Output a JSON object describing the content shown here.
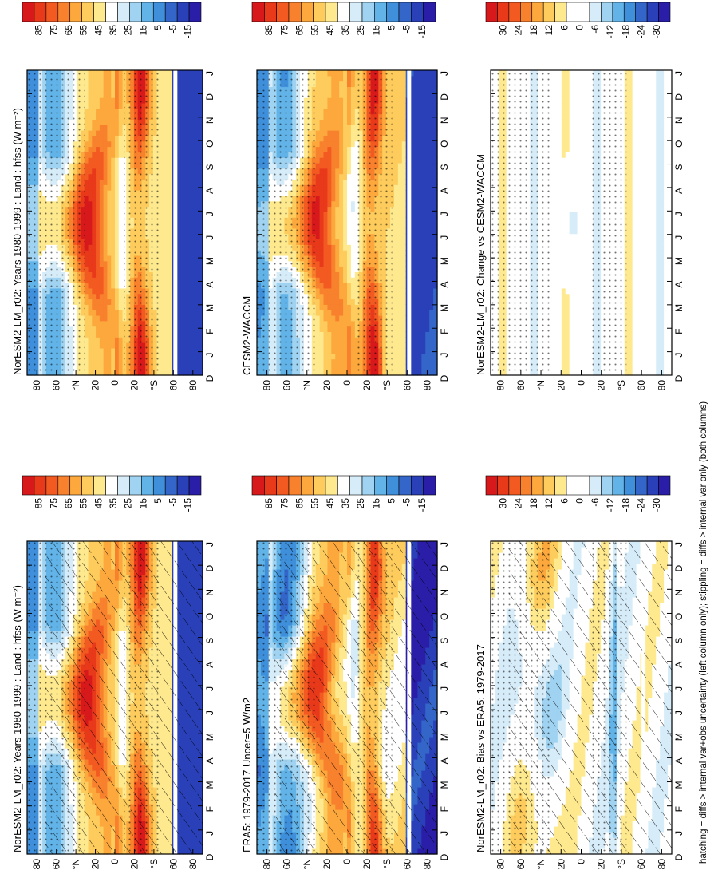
{
  "footnote": "hatching = diffs > internal var+obs uncertainty (left column only); stippling = diffs > internal var only (both columns)",
  "months": [
    "D",
    "J",
    "F",
    "M",
    "A",
    "M",
    "J",
    "J",
    "A",
    "S",
    "O",
    "N",
    "D",
    "J"
  ],
  "lat_ticks": [
    "80",
    "60",
    "°N",
    "20",
    "0",
    "20",
    "°S",
    "60",
    "80"
  ],
  "chart_data": [
    {
      "type": "heatmap",
      "title": "NorESM2-LM_r02: Years 1980-1999 : Land : hfss (W m⁻²)",
      "field": "clim",
      "hatching": true,
      "colorbar": {
        "labels": [
          "85",
          "75",
          "65",
          "55",
          "45",
          "35",
          "25",
          "15",
          "5",
          "-5",
          "-15"
        ],
        "colors": [
          "#d7191c",
          "#e8391b",
          "#f25a21",
          "#f8812d",
          "#fca83d",
          "#fdcc5c",
          "#fee98e",
          "#ffffff",
          "#d6ecf8",
          "#9fd3f1",
          "#62b3e8",
          "#3f8fdb",
          "#3466c9",
          "#2a40b8",
          "#2a1ea8"
        ]
      }
    },
    {
      "type": "heatmap",
      "title": "ERA5: 1979-2017 Uncer=5 W/m2",
      "field": "obs",
      "hatching": true,
      "colorbar": {
        "labels": [
          "85",
          "75",
          "65",
          "55",
          "45",
          "35",
          "25",
          "15",
          "5",
          "-5",
          "-15"
        ],
        "colors": [
          "#d7191c",
          "#e8391b",
          "#f25a21",
          "#f8812d",
          "#fca83d",
          "#fdcc5c",
          "#fee98e",
          "#ffffff",
          "#d6ecf8",
          "#9fd3f1",
          "#62b3e8",
          "#3f8fdb",
          "#3466c9",
          "#2a40b8",
          "#2a1ea8"
        ]
      }
    },
    {
      "type": "heatmap",
      "title": "NorESM2-LM_r02: Bias vs ERA5: 1979-2017",
      "field": "bias",
      "hatching": true,
      "colorbar": {
        "labels": [
          "30",
          "24",
          "18",
          "12",
          "6",
          "0",
          "-6",
          "-12",
          "-18",
          "-24",
          "-30"
        ],
        "colors": [
          "#d7191c",
          "#e8391b",
          "#f25a21",
          "#f8812d",
          "#fca83d",
          "#fdcc5c",
          "#fee98e",
          "#ffffff",
          "#ffffff",
          "#d6ecf8",
          "#9fd3f1",
          "#62b3e8",
          "#3f8fdb",
          "#3466c9",
          "#2a40b8",
          "#2a1ea8"
        ]
      }
    },
    {
      "type": "heatmap",
      "title": "NorESM2-LM_r02: Years 1980-1999 : Land : hfss (W m⁻²)",
      "field": "clim",
      "hatching": false,
      "colorbar": {
        "labels": [
          "85",
          "75",
          "65",
          "55",
          "45",
          "35",
          "25",
          "15",
          "5",
          "-5",
          "-15"
        ],
        "colors": [
          "#d7191c",
          "#e8391b",
          "#f25a21",
          "#f8812d",
          "#fca83d",
          "#fdcc5c",
          "#fee98e",
          "#ffffff",
          "#d6ecf8",
          "#9fd3f1",
          "#62b3e8",
          "#3f8fdb",
          "#3466c9",
          "#2a40b8",
          "#2a1ea8"
        ]
      }
    },
    {
      "type": "heatmap",
      "title": "CESM2-WACCM",
      "field": "cesm",
      "hatching": false,
      "colorbar": {
        "labels": [
          "85",
          "75",
          "65",
          "55",
          "45",
          "35",
          "25",
          "15",
          "5",
          "-5",
          "-15"
        ],
        "colors": [
          "#d7191c",
          "#e8391b",
          "#f25a21",
          "#f8812d",
          "#fca83d",
          "#fdcc5c",
          "#fee98e",
          "#ffffff",
          "#d6ecf8",
          "#9fd3f1",
          "#62b3e8",
          "#3f8fdb",
          "#3466c9",
          "#2a40b8",
          "#2a1ea8"
        ]
      }
    },
    {
      "type": "heatmap",
      "title": "NorESM2-LM_r02: Change vs CESM2-WACCM",
      "field": "change",
      "hatching": false,
      "colorbar": {
        "labels": [
          "30",
          "24",
          "18",
          "12",
          "6",
          "0",
          "-6",
          "-12",
          "-18",
          "-24",
          "-30"
        ],
        "colors": [
          "#d7191c",
          "#e8391b",
          "#f25a21",
          "#f8812d",
          "#fca83d",
          "#fdcc5c",
          "#fee98e",
          "#ffffff",
          "#ffffff",
          "#d6ecf8",
          "#9fd3f1",
          "#62b3e8",
          "#3f8fdb",
          "#3466c9",
          "#2a40b8",
          "#2a1ea8"
        ]
      }
    }
  ]
}
